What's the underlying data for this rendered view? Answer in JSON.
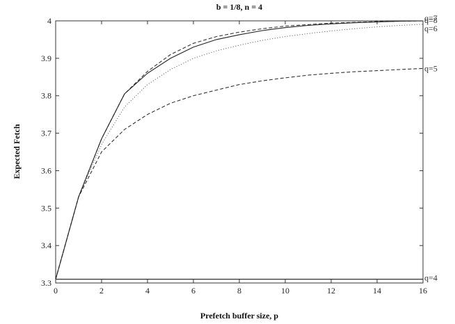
{
  "chart_data": {
    "type": "line",
    "title": "b = 1/8, n = 4",
    "xlabel": "Prefetch buffer size, p",
    "ylabel": "Expected Fetch",
    "xlim": [
      0,
      16
    ],
    "ylim": [
      3.3,
      4
    ],
    "xticks": [
      "0",
      "2",
      "4",
      "6",
      "8",
      "10",
      "12",
      "14",
      "16"
    ],
    "yticks": [
      "3.3",
      "3.4",
      "3.5",
      "3.6",
      "3.7",
      "3.8",
      "3.9",
      "4"
    ],
    "grid": false,
    "legend": "none",
    "x": [
      0,
      1,
      2,
      3,
      4,
      5,
      6,
      7,
      8,
      9,
      10,
      11,
      12,
      13,
      14,
      15,
      16
    ],
    "series": [
      {
        "name": "q=4",
        "style": "solid",
        "values": [
          3.31,
          3.31,
          3.31,
          3.31,
          3.31,
          3.31,
          3.31,
          3.31,
          3.31,
          3.31,
          3.31,
          3.31,
          3.31,
          3.31,
          3.31,
          3.31,
          3.31
        ]
      },
      {
        "name": "q=5",
        "style": "dashed",
        "values": [
          3.31,
          3.53,
          3.65,
          3.71,
          3.75,
          3.78,
          3.8,
          3.815,
          3.83,
          3.84,
          3.848,
          3.855,
          3.86,
          3.864,
          3.867,
          3.87,
          3.873
        ]
      },
      {
        "name": "q=6",
        "style": "dotted",
        "values": [
          3.31,
          3.53,
          3.67,
          3.77,
          3.83,
          3.87,
          3.9,
          3.92,
          3.935,
          3.948,
          3.958,
          3.966,
          3.973,
          3.979,
          3.984,
          3.988,
          3.991
        ]
      },
      {
        "name": "q=7",
        "style": "dashed",
        "values": [
          3.31,
          3.53,
          3.685,
          3.805,
          3.865,
          3.91,
          3.94,
          3.958,
          3.97,
          3.979,
          3.986,
          3.99,
          3.994,
          3.996,
          3.998,
          3.999,
          4.0
        ]
      },
      {
        "name": "q=8",
        "style": "solid",
        "values": [
          3.31,
          3.53,
          3.685,
          3.805,
          3.86,
          3.9,
          3.93,
          3.95,
          3.963,
          3.974,
          3.982,
          3.988,
          3.992,
          3.995,
          3.997,
          3.999,
          4.0
        ]
      }
    ]
  }
}
